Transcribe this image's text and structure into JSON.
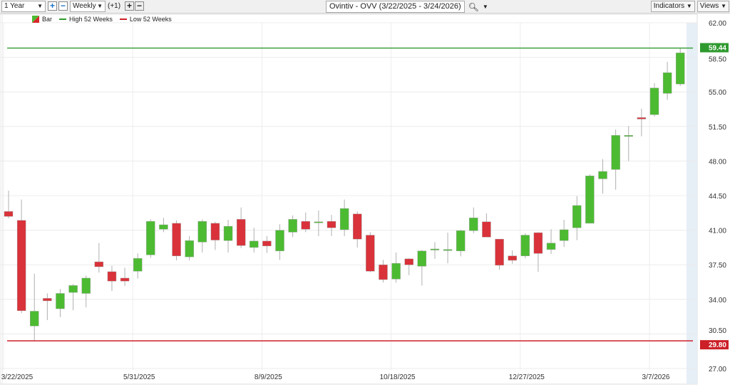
{
  "toolbar": {
    "range": "1 Year",
    "interval": "Weekly",
    "offset": "(+1)",
    "title": "Ovintiv - OVV (3/22/2025 - 3/24/2026)",
    "indicators": "Indicators",
    "views": "Views",
    "icons": [
      "plus-icon",
      "minus-icon",
      "search-icon",
      "chevron-down-icon"
    ]
  },
  "legend": [
    {
      "label": "Bar",
      "color": "#d9262b"
    },
    {
      "label": "High 52 Weeks",
      "color": "#2e9a2e"
    },
    {
      "label": "Low 52 Weeks",
      "color": "#cc1f27"
    }
  ],
  "chart_data": {
    "type": "candlestick",
    "title": "Ovintiv - OVV (3/22/2025 - 3/24/2026)",
    "ylim": [
      27.0,
      62.0
    ],
    "yticks": [
      "62.00",
      "58.50",
      "55.00",
      "51.50",
      "48.00",
      "44.50",
      "41.00",
      "37.50",
      "34.00",
      "30.50",
      "27.00"
    ],
    "xticks": [
      {
        "index": 0,
        "label": "3/22/2025"
      },
      {
        "index": 10,
        "label": "5/31/2025"
      },
      {
        "index": 20,
        "label": "8/9/2025"
      },
      {
        "index": 30,
        "label": "10/18/2025"
      },
      {
        "index": 40,
        "label": "12/27/2025"
      },
      {
        "index": 50,
        "label": "3/7/2026"
      }
    ],
    "high_52w": {
      "value": 59.44,
      "label": "59.44",
      "color": "#2e9a2e"
    },
    "low_52w": {
      "value": 29.8,
      "label": "29.80",
      "color": "#cc1f27"
    },
    "up_color": "#4cbb32",
    "down_color": "#d9323a",
    "grid": true,
    "ohlc": [
      [
        42.9,
        45.0,
        42.2,
        42.4
      ],
      [
        42.0,
        44.1,
        32.6,
        32.85
      ],
      [
        31.3,
        36.6,
        29.8,
        32.8
      ],
      [
        34.1,
        34.6,
        31.9,
        33.85
      ],
      [
        33.05,
        35.05,
        32.2,
        34.6
      ],
      [
        34.7,
        35.55,
        32.9,
        35.4
      ],
      [
        34.6,
        36.4,
        33.2,
        36.15
      ],
      [
        37.8,
        39.7,
        36.7,
        37.3
      ],
      [
        36.8,
        37.4,
        34.85,
        35.85
      ],
      [
        36.15,
        37.2,
        35.35,
        35.85
      ],
      [
        36.85,
        38.65,
        36.1,
        38.15
      ],
      [
        38.5,
        42.1,
        38.2,
        41.9
      ],
      [
        41.1,
        42.25,
        40.8,
        41.55
      ],
      [
        41.7,
        42.0,
        37.95,
        38.4
      ],
      [
        38.3,
        40.4,
        37.95,
        39.95
      ],
      [
        39.8,
        42.1,
        38.75,
        41.9
      ],
      [
        41.7,
        41.85,
        39.0,
        40.0
      ],
      [
        39.95,
        42.05,
        38.75,
        41.4
      ],
      [
        42.1,
        43.3,
        39.2,
        39.45
      ],
      [
        39.25,
        41.25,
        38.75,
        39.9
      ],
      [
        39.9,
        40.4,
        38.7,
        39.4
      ],
      [
        38.9,
        41.6,
        38.0,
        41.0
      ],
      [
        40.8,
        42.5,
        40.3,
        42.1
      ],
      [
        41.9,
        42.8,
        40.8,
        41.1
      ],
      [
        41.8,
        43.0,
        40.4,
        41.85
      ],
      [
        41.9,
        42.55,
        40.4,
        41.25
      ],
      [
        41.05,
        44.1,
        40.4,
        43.2
      ],
      [
        42.65,
        42.9,
        39.25,
        40.1
      ],
      [
        40.5,
        40.8,
        36.75,
        36.85
      ],
      [
        37.5,
        38.0,
        35.7,
        36.0
      ],
      [
        36.05,
        38.75,
        35.7,
        37.65
      ],
      [
        38.1,
        38.15,
        36.45,
        37.5
      ],
      [
        37.35,
        39.0,
        35.4,
        38.9
      ],
      [
        39.05,
        39.8,
        38.1,
        39.1
      ],
      [
        39.0,
        40.75,
        37.65,
        39.05
      ],
      [
        38.9,
        41.05,
        38.35,
        40.95
      ],
      [
        40.95,
        43.3,
        40.7,
        42.25
      ],
      [
        41.85,
        42.7,
        40.3,
        40.3
      ],
      [
        40.1,
        40.1,
        37.0,
        37.45
      ],
      [
        38.4,
        38.95,
        37.6,
        37.95
      ],
      [
        38.4,
        40.7,
        38.15,
        40.5
      ],
      [
        40.75,
        40.8,
        36.8,
        38.65
      ],
      [
        39.05,
        41.1,
        38.6,
        39.7
      ],
      [
        39.95,
        42.05,
        39.3,
        41.05
      ],
      [
        41.25,
        44.45,
        40.0,
        43.5
      ],
      [
        41.7,
        46.65,
        41.7,
        46.5
      ],
      [
        46.2,
        48.2,
        44.7,
        46.95
      ],
      [
        47.15,
        51.2,
        45.1,
        50.6
      ],
      [
        50.55,
        51.55,
        48.0,
        50.6
      ],
      [
        52.4,
        53.3,
        50.5,
        52.25
      ],
      [
        52.7,
        55.9,
        52.5,
        55.4
      ],
      [
        54.85,
        58.05,
        54.2,
        56.95
      ],
      [
        55.8,
        59.4,
        55.6,
        58.95
      ]
    ]
  }
}
